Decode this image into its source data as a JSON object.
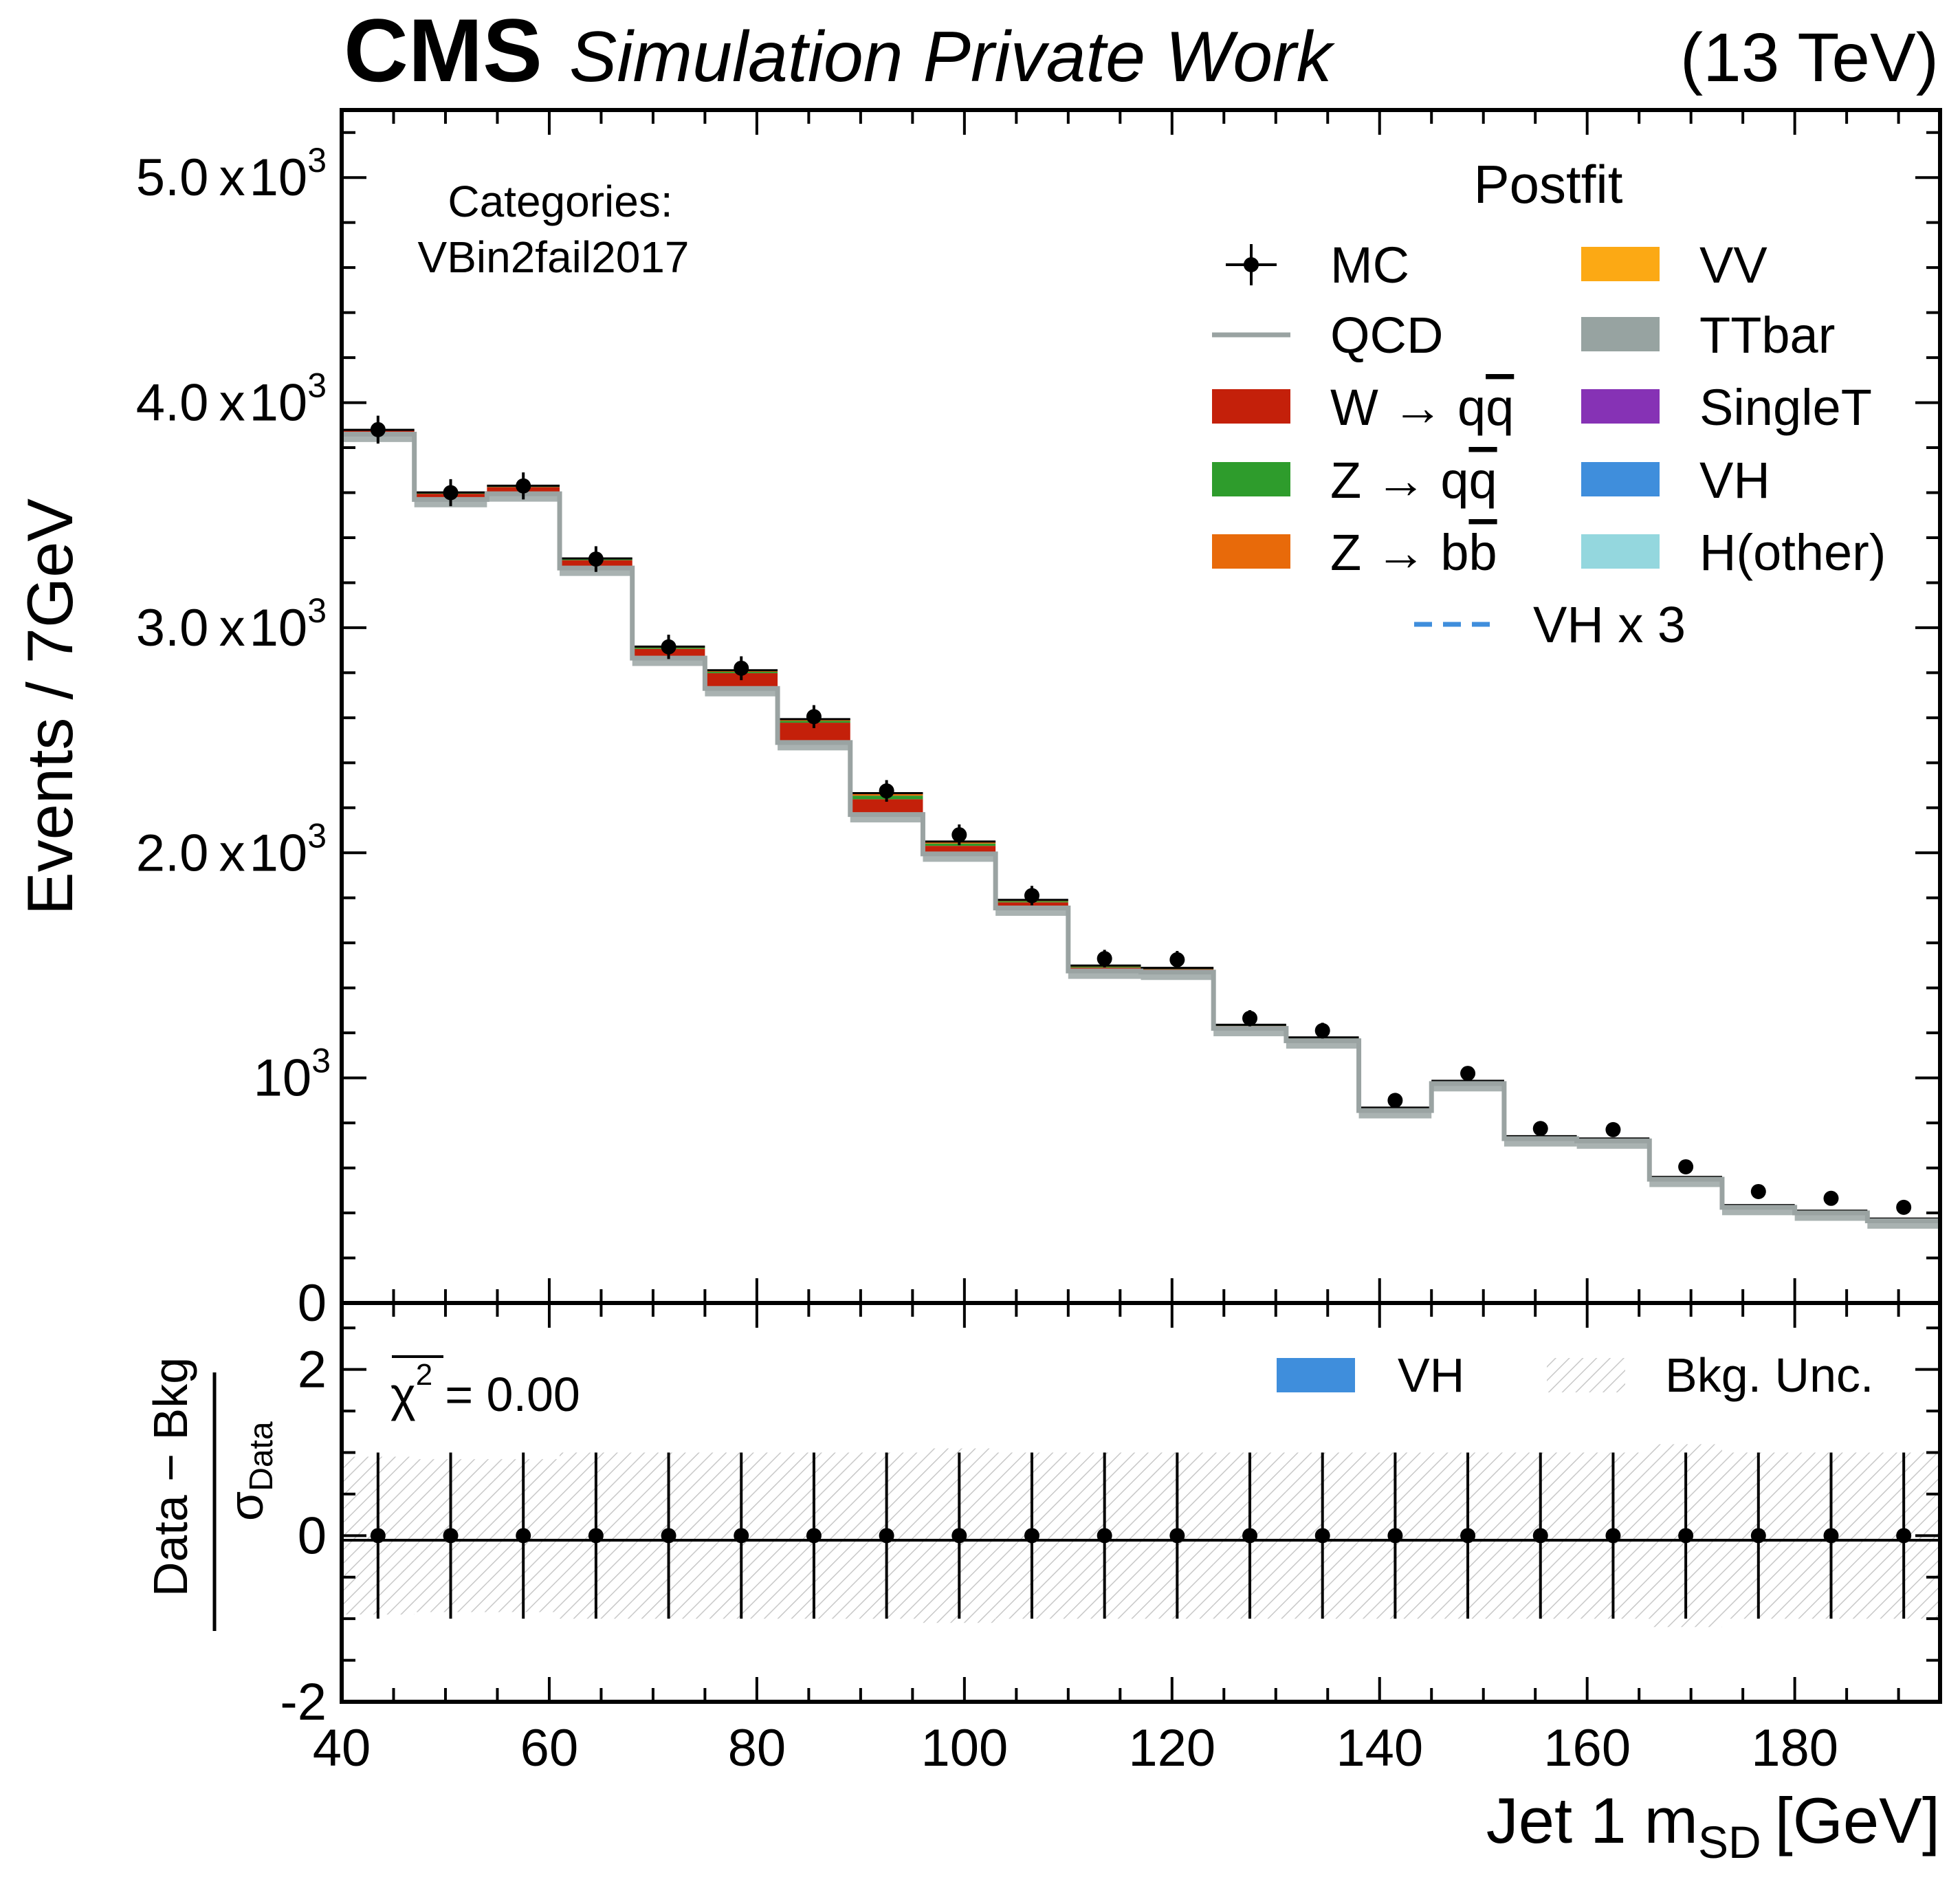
{
  "header": {
    "experiment": "CMS",
    "subtitle": "Simulation Private Work",
    "energy": "(13 TeV)"
  },
  "category": {
    "label": "Categories:",
    "name": "VBin2fail2017"
  },
  "legend": {
    "title": "Postfit",
    "entries": [
      {
        "label": "MC",
        "kind": "errorbar",
        "color": "#000000"
      },
      {
        "label": "QCD",
        "kind": "line",
        "color": "#9aa3a2"
      },
      {
        "label": "W",
        "arrow": "→",
        "tail": "qq",
        "tail_bar": "q",
        "kind": "fill",
        "color": "#c4200a"
      },
      {
        "label": "Z",
        "arrow": "→",
        "tail": "qq",
        "tail_bar": "q",
        "kind": "fill",
        "color": "#2e9c2c"
      },
      {
        "label": "Z",
        "arrow": "→",
        "tail": "bb",
        "tail_bar": "b",
        "kind": "fill",
        "color": "#e86a0a"
      },
      {
        "label": "VV",
        "kind": "fill",
        "color": "#fca914"
      },
      {
        "label": "TTbar",
        "kind": "fill",
        "color": "#97a3a1"
      },
      {
        "label": "SingleT",
        "kind": "fill",
        "color": "#8632b5"
      },
      {
        "label": "VH",
        "kind": "fill",
        "color": "#3f8edc"
      },
      {
        "label": "H(other)",
        "kind": "fill",
        "color": "#94d7de"
      },
      {
        "label": "VH x 3",
        "kind": "dashed",
        "color": "#3f8edc"
      }
    ]
  },
  "ratio_legend": {
    "vh": "VH",
    "vh_color": "#3f8edc",
    "unc": "Bkg. Unc."
  },
  "chi2": {
    "symbol": "χ",
    "power": "2",
    "text": "= 0.00"
  },
  "axes": {
    "ylabel": "Events / 7GeV",
    "xlabel_main": "Jet 1 m",
    "xlabel_sub": "SD",
    "xlabel_unit": "[GeV]",
    "ratio_num": "Data − Bkg",
    "ratio_den": "σ",
    "ratio_den_sub": "Data"
  },
  "chart_data": {
    "type": "bar",
    "subtype": "stacked-step-histogram",
    "bin_edges": [
      40,
      47,
      54,
      61,
      68,
      75,
      82,
      89,
      96,
      103,
      110,
      117,
      124,
      131,
      138,
      145,
      152,
      159,
      166,
      173,
      180,
      187,
      194
    ],
    "data_points": [
      3880,
      3600,
      3630,
      3305,
      2915,
      2820,
      2605,
      2275,
      2080,
      1810,
      1530,
      1525,
      1265,
      1210,
      900,
      1020,
      775,
      770,
      605,
      495,
      465,
      425
    ],
    "data_errors": [
      62,
      60,
      60,
      57,
      54,
      53,
      51,
      48,
      46,
      43,
      39,
      39,
      36,
      35,
      30,
      32,
      28,
      28,
      25,
      22,
      22,
      21
    ],
    "series": [
      {
        "name": "QCD",
        "values": [
          3860,
          3570,
          3595,
          3265,
          2865,
          2730,
          2490,
          2170,
          1995,
          1755,
          1475,
          1470,
          1220,
          1165,
          855,
          975,
          730,
          720,
          550,
          425,
          400,
          365
        ]
      },
      {
        "name": "TTbar",
        "values": [
          5,
          5,
          5,
          5,
          6,
          8,
          8,
          8,
          6,
          5,
          5,
          5,
          5,
          5,
          5,
          5,
          5,
          5,
          5,
          5,
          5,
          5
        ]
      },
      {
        "name": "W → qq̄",
        "values": [
          10,
          20,
          25,
          30,
          35,
          60,
          80,
          60,
          30,
          20,
          10,
          8,
          6,
          5,
          4,
          3,
          3,
          3,
          2,
          2,
          2,
          2
        ]
      },
      {
        "name": "Z → qq̄",
        "values": [
          2,
          3,
          3,
          4,
          5,
          6,
          8,
          16,
          10,
          5,
          4,
          3,
          2,
          2,
          2,
          2,
          1,
          1,
          1,
          1,
          1,
          1
        ]
      },
      {
        "name": "Z → bb̄",
        "values": [
          1,
          2,
          2,
          2,
          3,
          4,
          5,
          8,
          6,
          4,
          3,
          2,
          2,
          2,
          1,
          1,
          1,
          1,
          1,
          1,
          1,
          1
        ]
      },
      {
        "name": "VV",
        "values": [
          0,
          0,
          0,
          1,
          1,
          1,
          1,
          1,
          1,
          1,
          1,
          0,
          0,
          0,
          0,
          0,
          0,
          0,
          0,
          0,
          0,
          0
        ]
      },
      {
        "name": "SingleT",
        "values": [
          1,
          1,
          1,
          1,
          1,
          1,
          1,
          1,
          1,
          1,
          1,
          1,
          1,
          1,
          1,
          1,
          1,
          1,
          1,
          1,
          1,
          1
        ]
      },
      {
        "name": "VH",
        "values": [
          0,
          0,
          0,
          0,
          0,
          1,
          1,
          1,
          1,
          0,
          0,
          0,
          0,
          0,
          0,
          0,
          0,
          0,
          0,
          0,
          0,
          0
        ]
      },
      {
        "name": "H(other)",
        "values": [
          0,
          0,
          0,
          0,
          0,
          0,
          0,
          0,
          0,
          0,
          0,
          0,
          0,
          0,
          0,
          0,
          0,
          0,
          0,
          0,
          0,
          0
        ]
      }
    ],
    "bkg_unc_band": [
      0.95,
      0.92,
      0.92,
      1.0,
      1.0,
      1.0,
      1.0,
      1.0,
      1.05,
      1.0,
      1.0,
      1.0,
      1.0,
      1.0,
      1.0,
      1.0,
      1.0,
      1.0,
      1.1,
      1.0,
      1.0,
      1.0
    ],
    "ratio_points": [
      0,
      0,
      0,
      0,
      0,
      0,
      0,
      0,
      0,
      0,
      0,
      0,
      0,
      0,
      0,
      0,
      0,
      0,
      0,
      0,
      0,
      0
    ],
    "ratio_errors": [
      1,
      1,
      1,
      1,
      1,
      1,
      1,
      1,
      1,
      1,
      1,
      1,
      1,
      1,
      1,
      1,
      1,
      1,
      1,
      1,
      1,
      1
    ],
    "xlim": [
      40,
      194
    ],
    "ylim": [
      0,
      5300
    ],
    "ratio_ylim": [
      -2,
      2.8
    ],
    "x_ticks": [
      40,
      60,
      80,
      100,
      120,
      140,
      160,
      180
    ],
    "y_ticks": [
      {
        "value": 5000,
        "mant": "5.0",
        "x": "x",
        "base": "10",
        "exp": "3"
      },
      {
        "value": 4000,
        "mant": "4.0",
        "x": "x",
        "base": "10",
        "exp": "3"
      },
      {
        "value": 3000,
        "mant": "3.0",
        "x": "x",
        "base": "10",
        "exp": "3"
      },
      {
        "value": 2000,
        "mant": "2.0",
        "x": "x",
        "base": "10",
        "exp": "3"
      },
      {
        "value": 1000,
        "mant": "",
        "x": "",
        "base": "10",
        "exp": "3"
      },
      {
        "value": 0,
        "mant": "0",
        "x": "",
        "base": "",
        "exp": ""
      }
    ],
    "ratio_y_ticks": [
      -2,
      0,
      2
    ],
    "grid": false,
    "legend_position": "top-right"
  }
}
